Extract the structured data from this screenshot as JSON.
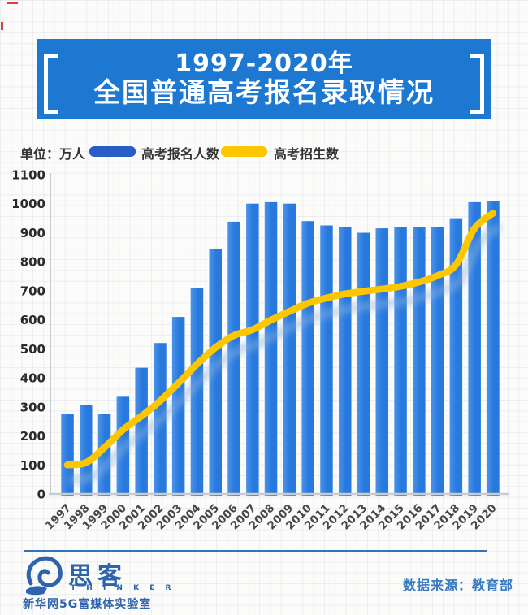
{
  "title": {
    "line1": "1997-2020年",
    "line2": "全国普通高考报名录取情况"
  },
  "unit_label": "单位：万人",
  "legend": [
    {
      "label": "高考报名人数",
      "color": "#2b5ec5",
      "type": "bar"
    },
    {
      "label": "高考招生数",
      "color": "#fcc602",
      "type": "line"
    }
  ],
  "chart_data": {
    "type": "bar",
    "title": "1997-2020年全国普通高考报名录取情况",
    "categories": [
      "1997",
      "1998",
      "1999",
      "2000",
      "2001",
      "2002",
      "2003",
      "2004",
      "2005",
      "2006",
      "2007",
      "2008",
      "2009",
      "2010",
      "2011",
      "2012",
      "2013",
      "2014",
      "2015",
      "2016",
      "2017",
      "2018",
      "2019",
      "2020"
    ],
    "series": [
      {
        "name": "高考报名人数",
        "type": "bar",
        "color": "#2879dd",
        "values": [
          275,
          305,
          275,
          335,
          435,
          520,
          610,
          710,
          845,
          938,
          1000,
          1005,
          1000,
          940,
          925,
          918,
          900,
          915,
          920,
          918,
          920,
          950,
          1005,
          1010
        ]
      },
      {
        "name": "高考招生数",
        "type": "line",
        "color": "#fcc600",
        "values": [
          100,
          108,
          160,
          221,
          268,
          320,
          382,
          447,
          504,
          546,
          566,
          599,
          629,
          657,
          675,
          689,
          698,
          706,
          715,
          730,
          752,
          790,
          915,
          967
        ]
      }
    ],
    "xlabel": "",
    "ylabel": "万人",
    "ylim": [
      0,
      1100
    ],
    "ytick_step": 100,
    "legend_position": "top",
    "grid": "faint background grid only"
  },
  "footer": {
    "logo_text": "思客",
    "logo_subtext": "T H I N K E R",
    "logo_org": "新华网5G富媒体实验室",
    "source": "数据来源：教育部"
  },
  "colors": {
    "banner_bg": "#1d78d2",
    "banner_text": "#ffffff",
    "bar": "#2879dd",
    "bar_light": "#4a93ea",
    "line": "#fcc600",
    "line_shadow": "#8fb4e0",
    "axis": "#c7ccd1",
    "tick_text": "#2a2a2a",
    "xlabel_text": "#474747",
    "legend_text": "#333333",
    "footer_blue": "#2e63ae",
    "source_text": "#3579c1",
    "rule_blue": "#3173bd",
    "corner_mark": "#e23b3b"
  }
}
